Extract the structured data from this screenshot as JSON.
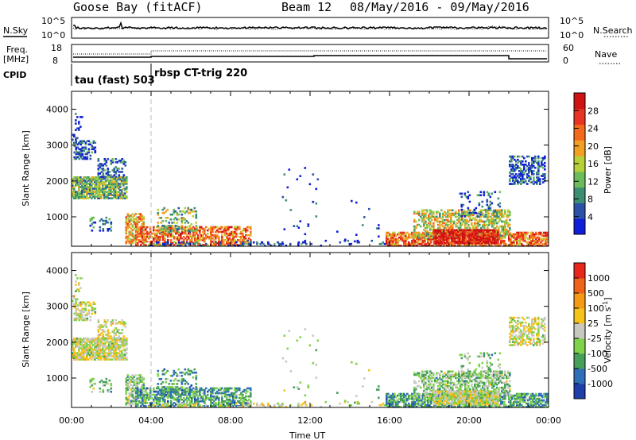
{
  "header": {
    "title": "Goose Bay (fitACF)",
    "beam": "Beam 12",
    "date_range": "08/May/2016 - 09/May/2016"
  },
  "summary": {
    "nsky_label": "N.Sky",
    "nsky_ticks": [
      "10^5",
      "10^0"
    ],
    "nsearch_label": "N.Search",
    "nsearch_ticks": [
      "10^5",
      "10^0"
    ],
    "freq_label_1": "Freq.",
    "freq_label_2": "[MHz]",
    "freq_ticks": [
      "18",
      "8"
    ],
    "nave_label": "Nave",
    "nave_ticks": [
      "60",
      "0"
    ],
    "cpid_label": "CPID",
    "cpid_segments": [
      {
        "text": "tau (fast) 503",
        "start_h": 0
      },
      {
        "text": "rbsp CT-trig 220",
        "start_h": 4
      }
    ]
  },
  "chart_data": [
    {
      "type": "heatmap",
      "name": "power",
      "ylabel": "Slant Range [km]",
      "ylim": [
        180,
        4500
      ],
      "yticks": [
        1000,
        2000,
        3000,
        4000
      ],
      "xlim": [
        0,
        24
      ],
      "colorbar": {
        "label": "Power [dB]",
        "ticks": [
          "28",
          "24",
          "20",
          "16",
          "12",
          "8",
          "4"
        ],
        "colors": [
          "#0f1ed8",
          "#2c52a8",
          "#3d8f72",
          "#6cbc5c",
          "#b7cf38",
          "#f2a022",
          "#f46a1d",
          "#e83422",
          "#cf1312"
        ]
      }
    },
    {
      "type": "heatmap",
      "name": "velocity",
      "ylabel": "Slant Range [km]",
      "ylim": [
        180,
        4500
      ],
      "yticks": [
        1000,
        2000,
        3000,
        4000
      ],
      "xlim": [
        0,
        24
      ],
      "xticks": [
        "00:00",
        "04:00",
        "08:00",
        "12:00",
        "16:00",
        "20:00",
        "00:00"
      ],
      "xlabel": "Time UT",
      "colorbar": {
        "label": "Velocity [m s",
        "label_sup": "-1",
        "label_end": "]",
        "ticks": [
          "1000",
          "500",
          "100",
          "25",
          "-25",
          "-100",
          "-500",
          "-1000"
        ],
        "colors": [
          "#1e3ea8",
          "#2f6fb8",
          "#46a05a",
          "#7fd24a",
          "#c9c8c0",
          "#f6c31a",
          "#f49a14",
          "#f0641a",
          "#e8261c"
        ]
      }
    }
  ]
}
